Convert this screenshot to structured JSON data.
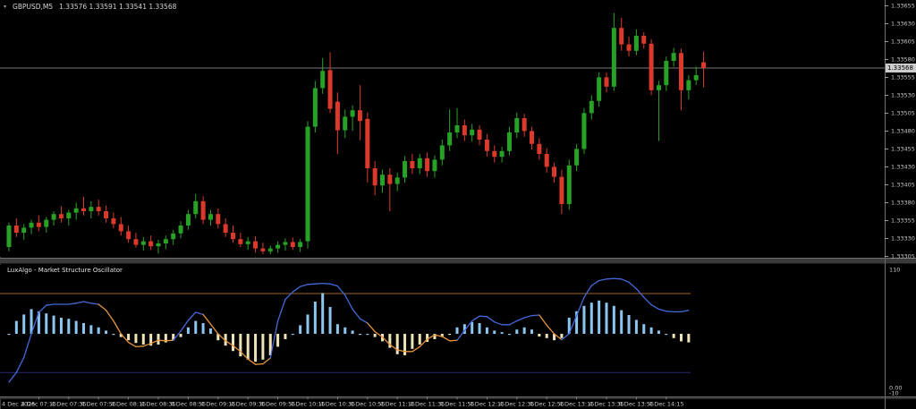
{
  "header": {
    "symbol": "GBPUSD,M5",
    "ohlc": "1.33576 1.33591 1.33541 1.33568",
    "bid": "1.33568"
  },
  "theme": {
    "background": "#000000",
    "bull": "#27a227",
    "bear": "#da392b",
    "bid_line": "#9e9e9e",
    "axis_text": "#c6c6c6",
    "axis_line": "#6b6b6b",
    "price_tag_bg": "#cdcdcd",
    "hist_up": "#8cc6ee",
    "hist_down": "#ede3b8",
    "osc_line_bull": "#4468d8",
    "osc_line_bear": "#e5943d",
    "level_upper": "#a06820",
    "level_lower": "#252a78",
    "separator": "#3a3a3a"
  },
  "chart_data": [
    {
      "type": "candlestick",
      "title": "GBPUSD,M5",
      "symbol": "GBPUSD",
      "timeframe": "M5",
      "current_price": "1.33568",
      "price_axis_labels": [
        "1.33655",
        "1.33630",
        "1.33605",
        "1.33580",
        "1.33555",
        "1.33530",
        "1.33505",
        "1.33480",
        "1.33455",
        "1.33430",
        "1.33405",
        "1.33380",
        "1.33355",
        "1.33330",
        "1.33305"
      ],
      "time_axis_labels": [
        "4 Dec 2025",
        "4 Dec 07:15",
        "4 Dec 07:35",
        "4 Dec 07:55",
        "4 Dec 08:15",
        "4 Dec 08:35",
        "4 Dec 08:55",
        "4 Dec 09:15",
        "4 Dec 09:35",
        "4 Dec 09:55",
        "4 Dec 10:15",
        "4 Dec 10:35",
        "4 Dec 10:55",
        "4 Dec 11:15",
        "4 Dec 11:35",
        "4 Dec 11:55",
        "4 Dec 12:15",
        "4 Dec 12:35",
        "4 Dec 12:55",
        "4 Dec 13:15",
        "4 Dec 13:35",
        "4 Dec 13:55",
        "4 Dec 14:15"
      ],
      "candles": [
        [
          "06:55",
          1.33318,
          1.33352,
          1.33312,
          1.33348
        ],
        [
          "07:00",
          1.33348,
          1.33358,
          1.33332,
          1.33338
        ],
        [
          "07:05",
          1.33338,
          1.3335,
          1.33328,
          1.33345
        ],
        [
          "07:10",
          1.33345,
          1.33356,
          1.33336,
          1.33352
        ],
        [
          "07:15",
          1.33352,
          1.33362,
          1.3334,
          1.33346
        ],
        [
          "07:20",
          1.33346,
          1.3336,
          1.33338,
          1.33356
        ],
        [
          "07:25",
          1.33356,
          1.33368,
          1.33348,
          1.33364
        ],
        [
          "07:30",
          1.33364,
          1.33375,
          1.33352,
          1.33358
        ],
        [
          "07:35",
          1.33358,
          1.3337,
          1.33348,
          1.33366
        ],
        [
          "07:40",
          1.33366,
          1.3338,
          1.33356,
          1.33372
        ],
        [
          "07:45",
          1.33372,
          1.33388,
          1.33362,
          1.33368
        ],
        [
          "07:50",
          1.33368,
          1.33382,
          1.33358,
          1.33374
        ],
        [
          "07:55",
          1.33374,
          1.33384,
          1.33362,
          1.33368
        ],
        [
          "08:00",
          1.33368,
          1.33376,
          1.33352,
          1.33358
        ],
        [
          "08:05",
          1.33358,
          1.33366,
          1.33344,
          1.3335
        ],
        [
          "08:10",
          1.3335,
          1.3336,
          1.33334,
          1.3334
        ],
        [
          "08:15",
          1.3334,
          1.33348,
          1.33324,
          1.33329
        ],
        [
          "08:20",
          1.33329,
          1.33338,
          1.33317,
          1.33321
        ],
        [
          "08:25",
          1.33321,
          1.33332,
          1.33313,
          1.33326
        ],
        [
          "08:30",
          1.33326,
          1.33334,
          1.33314,
          1.33319
        ],
        [
          "08:35",
          1.33319,
          1.33328,
          1.33309,
          1.33323
        ],
        [
          "08:40",
          1.33323,
          1.33334,
          1.33315,
          1.33329
        ],
        [
          "08:45",
          1.33329,
          1.33342,
          1.33321,
          1.33337
        ],
        [
          "08:50",
          1.33337,
          1.33354,
          1.3333,
          1.33348
        ],
        [
          "08:55",
          1.33348,
          1.3337,
          1.33342,
          1.33364
        ],
        [
          "09:00",
          1.33364,
          1.33392,
          1.33358,
          1.33382
        ],
        [
          "09:05",
          1.33382,
          1.33389,
          1.3335,
          1.33356
        ],
        [
          "09:10",
          1.33356,
          1.3337,
          1.33348,
          1.33364
        ],
        [
          "09:15",
          1.33364,
          1.33372,
          1.33344,
          1.3335
        ],
        [
          "09:20",
          1.3335,
          1.33358,
          1.33332,
          1.33338
        ],
        [
          "09:25",
          1.33338,
          1.33348,
          1.33324,
          1.33329
        ],
        [
          "09:30",
          1.33329,
          1.33338,
          1.33318,
          1.33322
        ],
        [
          "09:35",
          1.33322,
          1.33332,
          1.33314,
          1.33326
        ],
        [
          "09:40",
          1.33326,
          1.33333,
          1.3331,
          1.33316
        ],
        [
          "09:45",
          1.33316,
          1.33324,
          1.33308,
          1.33312
        ],
        [
          "09:50",
          1.33312,
          1.3332,
          1.33308,
          1.33316
        ],
        [
          "09:55",
          1.33316,
          1.33326,
          1.3331,
          1.33321
        ],
        [
          "10:00",
          1.33321,
          1.3333,
          1.33313,
          1.33325
        ],
        [
          "10:05",
          1.33325,
          1.33331,
          1.33314,
          1.33318
        ],
        [
          "10:10",
          1.33318,
          1.33329,
          1.33311,
          1.33325
        ],
        [
          "10:15",
          1.33326,
          1.33494,
          1.33316,
          1.33486
        ],
        [
          "10:20",
          1.33486,
          1.3355,
          1.33478,
          1.3354
        ],
        [
          "10:25",
          1.3354,
          1.33582,
          1.33532,
          1.33564
        ],
        [
          "10:30",
          1.33565,
          1.3359,
          1.33505,
          1.33511
        ],
        [
          "10:35",
          1.33521,
          1.33534,
          1.33448,
          1.33481
        ],
        [
          "10:40",
          1.33481,
          1.3351,
          1.3347,
          1.335
        ],
        [
          "10:45",
          1.335,
          1.33516,
          1.3348,
          1.33509
        ],
        [
          "10:50",
          1.33509,
          1.33544,
          1.33467,
          1.33494
        ],
        [
          "10:55",
          1.33497,
          1.33506,
          1.33408,
          1.33428
        ],
        [
          "11:00",
          1.33428,
          1.33438,
          1.3339,
          1.33404
        ],
        [
          "11:05",
          1.33404,
          1.33426,
          1.33394,
          1.33419
        ],
        [
          "11:10",
          1.33419,
          1.33428,
          1.33368,
          1.33406
        ],
        [
          "11:15",
          1.33406,
          1.33422,
          1.33396,
          1.33415
        ],
        [
          "11:20",
          1.33415,
          1.33445,
          1.33408,
          1.33438
        ],
        [
          "11:25",
          1.33438,
          1.33448,
          1.3342,
          1.33428
        ],
        [
          "11:30",
          1.33428,
          1.33448,
          1.3342,
          1.33442
        ],
        [
          "11:35",
          1.33442,
          1.3345,
          1.33416,
          1.33424
        ],
        [
          "11:40",
          1.33424,
          1.33446,
          1.33415,
          1.3344
        ],
        [
          "11:45",
          1.3344,
          1.33468,
          1.33432,
          1.3346
        ],
        [
          "11:50",
          1.3346,
          1.3351,
          1.33452,
          1.33478
        ],
        [
          "11:55",
          1.33478,
          1.33512,
          1.3347,
          1.33488
        ],
        [
          "12:00",
          1.33488,
          1.33496,
          1.33466,
          1.33474
        ],
        [
          "12:05",
          1.33474,
          1.3349,
          1.33465,
          1.33482
        ],
        [
          "12:10",
          1.33482,
          1.33488,
          1.3346,
          1.33468
        ],
        [
          "12:15",
          1.33468,
          1.33476,
          1.33444,
          1.33452
        ],
        [
          "12:20",
          1.33452,
          1.3346,
          1.33436,
          1.33444
        ],
        [
          "12:25",
          1.33444,
          1.33458,
          1.33436,
          1.33452
        ],
        [
          "12:30",
          1.33452,
          1.33486,
          1.33446,
          1.33478
        ],
        [
          "12:35",
          1.33478,
          1.33506,
          1.3347,
          1.33498
        ],
        [
          "12:40",
          1.33498,
          1.33504,
          1.33472,
          1.3348
        ],
        [
          "12:45",
          1.3348,
          1.33486,
          1.33454,
          1.33462
        ],
        [
          "12:50",
          1.33462,
          1.3347,
          1.3344,
          1.33448
        ],
        [
          "12:55",
          1.33448,
          1.33456,
          1.33422,
          1.3343
        ],
        [
          "13:00",
          1.3343,
          1.33436,
          1.33408,
          1.33416
        ],
        [
          "13:05",
          1.33416,
          1.33426,
          1.33364,
          1.33378
        ],
        [
          "13:10",
          1.33378,
          1.3344,
          1.3337,
          1.33432
        ],
        [
          "13:15",
          1.33432,
          1.33462,
          1.33424,
          1.33455
        ],
        [
          "13:20",
          1.33455,
          1.33512,
          1.33448,
          1.33505
        ],
        [
          "13:25",
          1.33505,
          1.3353,
          1.33496,
          1.33522
        ],
        [
          "13:30",
          1.33522,
          1.33562,
          1.33514,
          1.33555
        ],
        [
          "13:35",
          1.33555,
          1.33562,
          1.33534,
          1.33542
        ],
        [
          "13:40",
          1.33542,
          1.33645,
          1.33536,
          1.33624
        ],
        [
          "13:45",
          1.33624,
          1.33638,
          1.33592,
          1.33601
        ],
        [
          "13:50",
          1.33601,
          1.33612,
          1.33584,
          1.33592
        ],
        [
          "13:55",
          1.33592,
          1.33622,
          1.33586,
          1.33613
        ],
        [
          "14:00",
          1.33613,
          1.33618,
          1.33595,
          1.33602
        ],
        [
          "14:05",
          1.33602,
          1.33608,
          1.3353,
          1.33537
        ],
        [
          "14:10",
          1.33537,
          1.3355,
          1.33466,
          1.33544
        ],
        [
          "14:15",
          1.33544,
          1.33584,
          1.33536,
          1.33578
        ],
        [
          "14:20",
          1.33578,
          1.33596,
          1.3357,
          1.33589
        ],
        [
          "14:25",
          1.33589,
          1.33595,
          1.33509,
          1.33537
        ],
        [
          "14:30",
          1.33537,
          1.33558,
          1.33524,
          1.33551
        ],
        [
          "14:35",
          1.33551,
          1.3357,
          1.33544,
          1.33558
        ],
        [
          "14:40",
          1.33576,
          1.33591,
          1.33541,
          1.33568
        ]
      ]
    },
    {
      "type": "oscillator-histogram",
      "title": "LuxAlgo - Market Structure Oscillator",
      "scale_labels": [
        {
          "label": "110",
          "value": 110
        },
        {
          "label": "0.00",
          "value": 0
        },
        {
          "label": "-10",
          "value": -10
        }
      ],
      "levels": {
        "upper": 87.5,
        "baseline": 50,
        "lower": 14
      },
      "histogram": [
        50,
        62,
        68,
        73,
        71,
        69,
        67,
        65,
        64,
        62,
        60,
        58,
        56,
        53,
        50,
        47,
        44,
        41.5,
        40,
        39,
        40,
        42,
        44,
        47,
        56,
        62,
        60,
        55,
        44,
        39,
        34,
        29,
        26,
        24,
        26,
        30,
        38,
        45,
        50,
        58,
        68,
        80,
        88,
        75,
        59,
        56,
        53,
        50,
        50,
        47,
        43,
        37,
        31,
        30,
        36,
        40,
        42.5,
        45,
        47,
        49,
        56,
        59,
        61,
        60,
        56,
        53,
        51.5,
        50,
        54,
        56,
        54,
        47.5,
        46,
        44,
        46,
        65,
        71,
        76,
        79,
        81,
        79,
        76,
        72,
        67.5,
        63,
        59,
        56,
        53,
        50,
        46,
        43,
        42,
        null,
        null
      ],
      "line": [
        5,
        14,
        28,
        50,
        70,
        76.5,
        77.5,
        77.5,
        77.5,
        78.5,
        80,
        78.5,
        77.5,
        72,
        62,
        50,
        42,
        38,
        38.5,
        41,
        44,
        43.5,
        44,
        52.5,
        62.5,
        70,
        68,
        59,
        50,
        43.5,
        39,
        33.5,
        26.5,
        21.5,
        22,
        27.5,
        62,
        82,
        89,
        94,
        96,
        96.5,
        97,
        96.5,
        94.5,
        86,
        73,
        64,
        60,
        52,
        47,
        40,
        35,
        33.5,
        33.5,
        38,
        45,
        49,
        47.5,
        43.5,
        44,
        53,
        62,
        66.5,
        66,
        61,
        58.5,
        58.5,
        62,
        65,
        67,
        67.5,
        58,
        50,
        44.5,
        50,
        67,
        84,
        95,
        99.5,
        101,
        101.5,
        101,
        98,
        92,
        84,
        77,
        73,
        71,
        70.5,
        70.5,
        72,
        null,
        null
      ],
      "line_color": [
        "b",
        "b",
        "b",
        "b",
        "b",
        "b",
        "b",
        "b",
        "b",
        "b",
        "b",
        "b",
        "b",
        "o",
        "o",
        "o",
        "o",
        "o",
        "o",
        "o",
        "o",
        "o",
        "o",
        "b",
        "b",
        "b",
        "b",
        "o",
        "o",
        "o",
        "o",
        "o",
        "o",
        "o",
        "o",
        "o",
        "b",
        "b",
        "b",
        "b",
        "b",
        "b",
        "b",
        "b",
        "b",
        "b",
        "b",
        "b",
        "b",
        "o",
        "o",
        "o",
        "o",
        "o",
        "o",
        "o",
        "o",
        "o",
        "o",
        "o",
        "o",
        "b",
        "b",
        "b",
        "b",
        "b",
        "b",
        "b",
        "b",
        "b",
        "b",
        "b",
        "o",
        "o",
        "o",
        "b",
        "b",
        "b",
        "b",
        "b",
        "b",
        "b",
        "b",
        "b",
        "b",
        "b",
        "b",
        "b",
        "b",
        "b",
        "b",
        "b",
        null,
        null
      ]
    }
  ]
}
